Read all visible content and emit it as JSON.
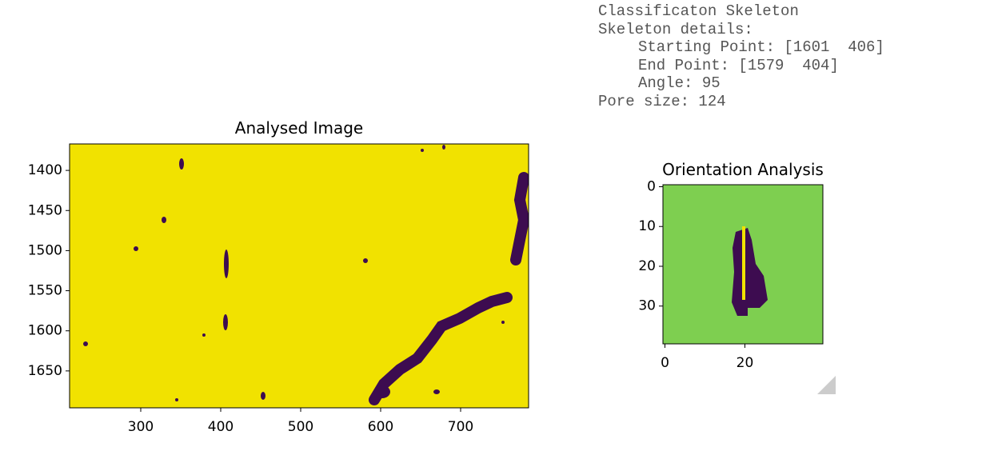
{
  "output_text": {
    "lines": [
      "Classificaton Skeleton",
      "Skeleton details:",
      "Starting Point: [1601  406]",
      "End Point: [1579  404]",
      "Angle: 95",
      "Pore size: 124"
    ]
  },
  "chart_data": [
    {
      "type": "image",
      "title": "Analysed Image",
      "xlim": [
        211,
        785
      ],
      "ylim": [
        1696,
        1367
      ],
      "xticks": [
        300,
        400,
        500,
        600,
        700
      ],
      "yticks": [
        1400,
        1450,
        1500,
        1550,
        1600,
        1650
      ]
    },
    {
      "type": "image",
      "title": "Orientation Analysis",
      "xlim": [
        -0.5,
        39.5
      ],
      "ylim": [
        39.5,
        -0.5
      ],
      "xticks": [
        0,
        20
      ],
      "yticks": [
        0,
        10,
        20,
        30
      ]
    }
  ]
}
